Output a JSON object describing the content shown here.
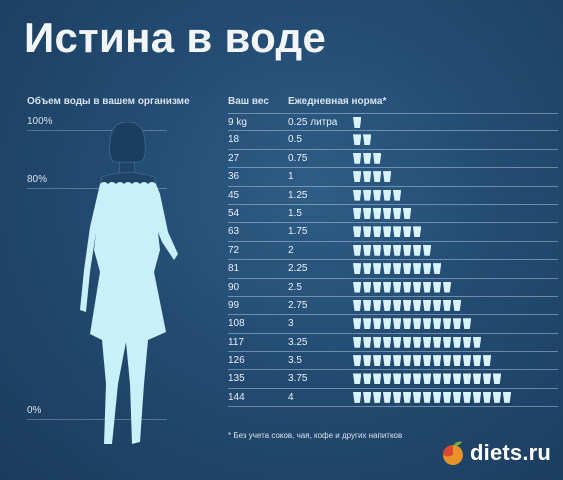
{
  "title": "Истина в воде",
  "left_panel": {
    "header": "Объем воды в вашем организме",
    "pct_top": "100%",
    "pct_mid": "80%",
    "pct_bottom": "0%"
  },
  "table": {
    "col_weight": "Ваш вес",
    "col_norm": "Ежедневная норма*",
    "rows": [
      {
        "weight": "9 kg",
        "norm": "0.25 литра",
        "cups": 1
      },
      {
        "weight": "18",
        "norm": "0.5",
        "cups": 2
      },
      {
        "weight": "27",
        "norm": "0.75",
        "cups": 3
      },
      {
        "weight": "36",
        "norm": "1",
        "cups": 4
      },
      {
        "weight": "45",
        "norm": "1.25",
        "cups": 5
      },
      {
        "weight": "54",
        "norm": "1.5",
        "cups": 6
      },
      {
        "weight": "63",
        "norm": "1.75",
        "cups": 7
      },
      {
        "weight": "72",
        "norm": "2",
        "cups": 8
      },
      {
        "weight": "81",
        "norm": "2.25",
        "cups": 9
      },
      {
        "weight": "90",
        "norm": "2.5",
        "cups": 10
      },
      {
        "weight": "99",
        "norm": "2.75",
        "cups": 11
      },
      {
        "weight": "108",
        "norm": "3",
        "cups": 12
      },
      {
        "weight": "117",
        "norm": "3.25",
        "cups": 13
      },
      {
        "weight": "126",
        "norm": "3.5",
        "cups": 14
      },
      {
        "weight": "135",
        "norm": "3.75",
        "cups": 15
      },
      {
        "weight": "144",
        "norm": "4",
        "cups": 16
      }
    ]
  },
  "footnote": "* Без учета соков, чая, кофе и других напитков",
  "watermark": "diets.ru",
  "colors": {
    "background": "#234b72",
    "water": "#d8f3fb",
    "figure_fill": "#c9eff8"
  }
}
